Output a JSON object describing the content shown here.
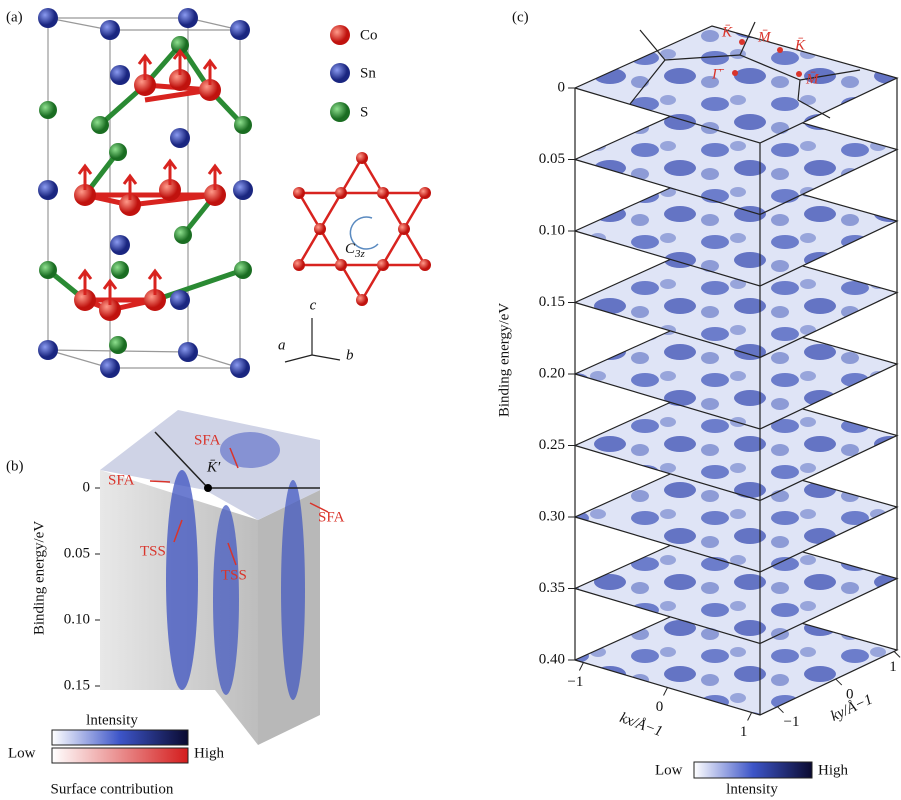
{
  "panel_a": {
    "label": "(a)",
    "legend": [
      {
        "label": "Co",
        "color": "#d8231f"
      },
      {
        "label": "Sn",
        "color": "#24349e"
      },
      {
        "label": "S",
        "color": "#2a8a33"
      }
    ],
    "symmetry": {
      "symbol": "C",
      "subscript": "3z"
    },
    "axes": {
      "a": "a",
      "b": "b",
      "c": "c"
    }
  },
  "panel_b": {
    "label": "(b)",
    "y_axis_label": "Binding energy/eV",
    "ylim": [
      0,
      0.15
    ],
    "yticks": [
      0,
      0.05,
      {
        "value": 0.1,
        "label": "0.10"
      },
      0.15
    ],
    "point_label": "K̄′",
    "annotations": [
      "SFA",
      "SFA",
      "SFA",
      "TSS",
      "TSS"
    ],
    "colorbar": {
      "title": "lntensity",
      "low": "Low",
      "high": "High",
      "subtitle": "Surface contribution"
    }
  },
  "panel_c": {
    "label": "(c)",
    "y_axis_label": "Binding energy/eV",
    "ylim": [
      0,
      0.4
    ],
    "yticks": [
      0,
      0.05,
      {
        "value": 0.1,
        "label": "0.10"
      },
      0.15,
      {
        "value": 0.2,
        "label": "0.20"
      },
      0.25,
      {
        "value": 0.3,
        "label": "0.30"
      },
      0.35,
      {
        "value": 0.4,
        "label": "0.40"
      }
    ],
    "kx_label": "kx/Å−1",
    "ky_label": "ky/Å−1",
    "kxlim": [
      -1.1,
      1.1
    ],
    "kxticks": [
      {
        "value": -1,
        "label": "−1"
      },
      0,
      1
    ],
    "kylim": [
      -1.3,
      1.05
    ],
    "kyticks": [
      {
        "value": -1,
        "label": "−1"
      },
      0,
      1
    ],
    "points": [
      "K̄",
      "M̄",
      "K̄",
      "Γ̄",
      "M̄"
    ],
    "colorbar": {
      "low": "Low",
      "high": "High",
      "title": "lntensity"
    }
  }
}
